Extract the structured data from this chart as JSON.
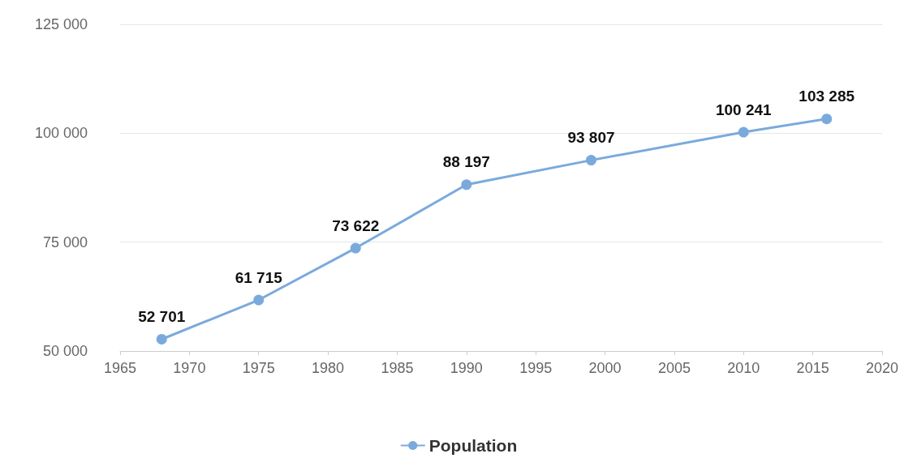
{
  "chart_data": {
    "type": "line",
    "x": [
      1968,
      1975,
      1982,
      1990,
      1999,
      2010,
      2016
    ],
    "series": [
      {
        "name": "Population",
        "color": "#7aaadc",
        "values": [
          52701,
          61715,
          73622,
          88197,
          93807,
          100241,
          103285
        ],
        "value_labels": [
          "52 701",
          "61 715",
          "73 622",
          "88 197",
          "93 807",
          "100 241",
          "103 285"
        ]
      }
    ],
    "xlim": [
      1965,
      2020
    ],
    "xticks": [
      1965,
      1970,
      1975,
      1980,
      1985,
      1990,
      1995,
      2000,
      2005,
      2010,
      2015,
      2020
    ],
    "ylim": [
      50000,
      125000
    ],
    "yticks": [
      {
        "value": 50000,
        "label": "50 000"
      },
      {
        "value": 75000,
        "label": "75 000"
      },
      {
        "value": 100000,
        "label": "100 000"
      },
      {
        "value": 125000,
        "label": "125 000"
      }
    ],
    "grid": "y",
    "legend": "bottom",
    "marker": "circle",
    "line_style": "solid"
  }
}
